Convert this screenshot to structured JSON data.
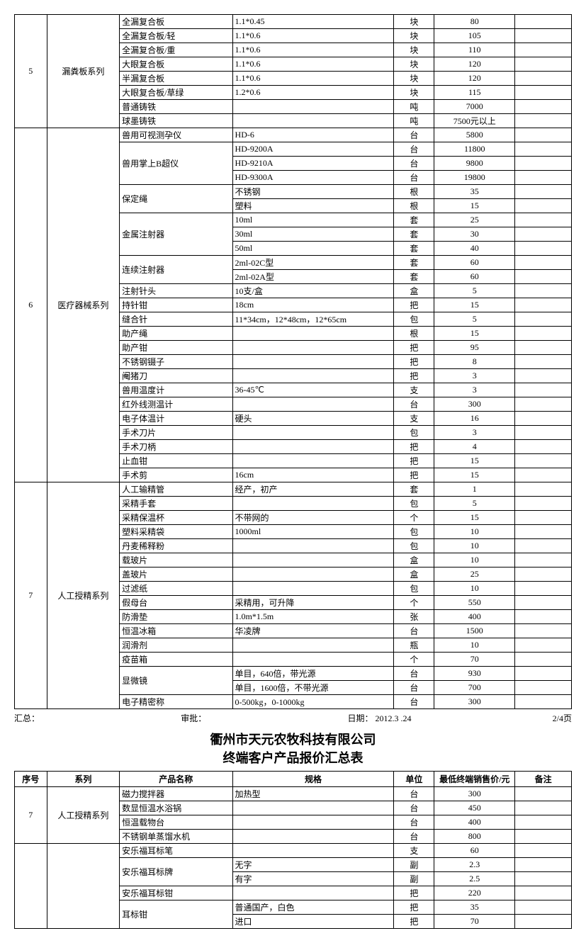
{
  "table1": {
    "groups": [
      {
        "seq": "5",
        "series": "漏粪板系列",
        "rows": [
          {
            "product": "全漏复合板",
            "spec": "1.1*0.45",
            "unit": "块",
            "price": "80",
            "remark": ""
          },
          {
            "product": "全漏复合板/轻",
            "spec": "1.1*0.6",
            "unit": "块",
            "price": "105",
            "remark": ""
          },
          {
            "product": "全漏复合板/重",
            "spec": "1.1*0.6",
            "unit": "块",
            "price": "110",
            "remark": ""
          },
          {
            "product": "大眼复合板",
            "spec": "1.1*0.6",
            "unit": "块",
            "price": "120",
            "remark": ""
          },
          {
            "product": "半漏复合板",
            "spec": "1.1*0.6",
            "unit": "块",
            "price": "120",
            "remark": ""
          },
          {
            "product": "大眼复合板/草绿",
            "spec": "1.2*0.6",
            "unit": "块",
            "price": "115",
            "remark": ""
          },
          {
            "product": "普通铸铁",
            "spec": "",
            "unit": "吨",
            "price": "7000",
            "remark": ""
          },
          {
            "product": "球墨铸铁",
            "spec": "",
            "unit": "吨",
            "price": "7500元以上",
            "remark": ""
          }
        ]
      },
      {
        "seq": "6",
        "series": "医疗器械系列",
        "rows": [
          {
            "product": "兽用可视测孕仪",
            "spec": "HD-6",
            "unit": "台",
            "price": "5800",
            "remark": ""
          },
          {
            "product": "兽用掌上B超仪",
            "product_rowspan": 3,
            "spec": "HD-9200A",
            "unit": "台",
            "price": "11800",
            "remark": ""
          },
          {
            "spec": "HD-9210A",
            "unit": "台",
            "price": "9800",
            "remark": ""
          },
          {
            "spec": "HD-9300A",
            "unit": "台",
            "price": "19800",
            "remark": ""
          },
          {
            "product": "保定绳",
            "product_rowspan": 2,
            "spec": "不锈钢",
            "unit": "根",
            "price": "35",
            "remark": ""
          },
          {
            "spec": "塑料",
            "unit": "根",
            "price": "15",
            "remark": ""
          },
          {
            "product": "金属注射器",
            "product_rowspan": 3,
            "spec": "10ml",
            "unit": "套",
            "price": "25",
            "remark": ""
          },
          {
            "spec": "30ml",
            "unit": "套",
            "price": "30",
            "remark": ""
          },
          {
            "spec": "50ml",
            "unit": "套",
            "price": "40",
            "remark": ""
          },
          {
            "product": "连续注射器",
            "product_rowspan": 2,
            "spec": "2ml-02C型",
            "unit": "套",
            "price": "60",
            "remark": ""
          },
          {
            "spec": "2ml-02A型",
            "unit": "套",
            "price": "60",
            "remark": ""
          },
          {
            "product": "注射针头",
            "spec": "10支/盒",
            "unit": "盒",
            "price": "5",
            "remark": ""
          },
          {
            "product": "持针钳",
            "spec": "18cm",
            "unit": "把",
            "price": "15",
            "remark": ""
          },
          {
            "product": "缝合针",
            "spec": "11*34cm，12*48cm，12*65cm",
            "unit": "包",
            "price": "5",
            "remark": ""
          },
          {
            "product": "助产绳",
            "spec": "",
            "unit": "根",
            "price": "15",
            "remark": ""
          },
          {
            "product": "助产钳",
            "spec": "",
            "unit": "把",
            "price": "95",
            "remark": ""
          },
          {
            "product": "不锈钢镊子",
            "spec": "",
            "unit": "把",
            "price": "8",
            "remark": ""
          },
          {
            "product": "阉猪刀",
            "spec": "",
            "unit": "把",
            "price": "3",
            "remark": ""
          },
          {
            "product": "兽用温度计",
            "spec": "36-45℃",
            "unit": "支",
            "price": "3",
            "remark": ""
          },
          {
            "product": "红外线测温计",
            "spec": "",
            "unit": "台",
            "price": "300",
            "remark": ""
          },
          {
            "product": "电子体温计",
            "spec": "硬头",
            "unit": "支",
            "price": "16",
            "remark": ""
          },
          {
            "product": "手术刀片",
            "spec": "",
            "unit": "包",
            "price": "3",
            "remark": ""
          },
          {
            "product": "手术刀柄",
            "spec": "",
            "unit": "把",
            "price": "4",
            "remark": ""
          },
          {
            "product": "止血钳",
            "spec": "",
            "unit": "把",
            "price": "15",
            "remark": ""
          },
          {
            "product": "手术剪",
            "spec": "16cm",
            "unit": "把",
            "price": "15",
            "remark": ""
          }
        ]
      },
      {
        "seq": "7",
        "series": "人工授精系列",
        "rows": [
          {
            "product": "人工输精管",
            "spec": "经产，初产",
            "unit": "套",
            "price": "1",
            "remark": ""
          },
          {
            "product": "采精手套",
            "spec": "",
            "unit": "包",
            "price": "5",
            "remark": ""
          },
          {
            "product": "采精保温杯",
            "spec": "不带网的",
            "unit": "个",
            "price": "15",
            "remark": ""
          },
          {
            "product": "塑料采精袋",
            "spec": "1000ml",
            "unit": "包",
            "price": "10",
            "remark": ""
          },
          {
            "product": "丹麦稀释粉",
            "spec": "",
            "unit": "包",
            "price": "10",
            "remark": ""
          },
          {
            "product": "载玻片",
            "spec": "",
            "unit": "盒",
            "price": "10",
            "remark": ""
          },
          {
            "product": "盖玻片",
            "spec": "",
            "unit": "盒",
            "price": "25",
            "remark": ""
          },
          {
            "product": "过滤纸",
            "spec": "",
            "unit": "包",
            "price": "10",
            "remark": ""
          },
          {
            "product": "假母台",
            "spec": "采精用，可升降",
            "unit": "个",
            "price": "550",
            "remark": ""
          },
          {
            "product": "防滑垫",
            "spec": "1.0m*1.5m",
            "unit": "张",
            "price": "400",
            "remark": ""
          },
          {
            "product": "恒温冰箱",
            "spec": "华凌牌",
            "unit": "台",
            "price": "1500",
            "remark": ""
          },
          {
            "product": "润滑剂",
            "spec": "",
            "unit": "瓶",
            "price": "10",
            "remark": ""
          },
          {
            "product": "疫苗箱",
            "spec": "",
            "unit": "个",
            "price": "70",
            "remark": ""
          },
          {
            "product": "显微镜",
            "product_rowspan": 2,
            "spec": "单目，640倍，带光源",
            "unit": "台",
            "price": "930",
            "remark": ""
          },
          {
            "spec": "单目，1600倍，不带光源",
            "unit": "台",
            "price": "700",
            "remark": ""
          },
          {
            "product": "电子精密称",
            "spec": "0-500kg，0-1000kg",
            "unit": "台",
            "price": "300",
            "remark": ""
          }
        ]
      }
    ]
  },
  "footer": {
    "summary": "汇总：",
    "approve": "审批：",
    "date_label": "日期：",
    "date": "2012.3 .24",
    "page": "2/4页"
  },
  "titles": {
    "company": "衢州市天元农牧科技有限公司",
    "subtitle": "终端客户产品报价汇总表"
  },
  "headers": {
    "seq": "序号",
    "series": "系列",
    "product": "产品名称",
    "spec": "规格",
    "unit": "单位",
    "price": "最低终端销售价/元",
    "remark": "备注"
  },
  "table2": {
    "groups": [
      {
        "seq": "7",
        "series": "人工授精系列",
        "rows": [
          {
            "product": "磁力搅拌器",
            "spec": "加热型",
            "unit": "台",
            "price": "300",
            "remark": ""
          },
          {
            "product": "数显恒温水浴锅",
            "spec": "",
            "unit": "台",
            "price": "450",
            "remark": ""
          },
          {
            "product": "恒温载物台",
            "spec": "",
            "unit": "台",
            "price": "400",
            "remark": ""
          },
          {
            "product": "不锈钢单蒸馏水机",
            "spec": "",
            "unit": "台",
            "price": "800",
            "remark": ""
          }
        ]
      },
      {
        "seq": "",
        "series": "",
        "rows": [
          {
            "product": "安乐福耳标笔",
            "spec": "",
            "unit": "支",
            "price": "60",
            "remark": ""
          },
          {
            "product": "安乐福耳标牌",
            "product_rowspan": 2,
            "spec": "无字",
            "unit": "副",
            "price": "2.3",
            "remark": ""
          },
          {
            "spec": "有字",
            "unit": "副",
            "price": "2.5",
            "remark": ""
          },
          {
            "product": "安乐福耳标钳",
            "spec": "",
            "unit": "把",
            "price": "220",
            "remark": ""
          },
          {
            "product": "耳标钳",
            "product_rowspan": 2,
            "spec": "普通国产，白色",
            "unit": "把",
            "price": "35",
            "remark": ""
          },
          {
            "spec": "进口",
            "unit": "把",
            "price": "70",
            "remark": ""
          }
        ]
      }
    ]
  }
}
